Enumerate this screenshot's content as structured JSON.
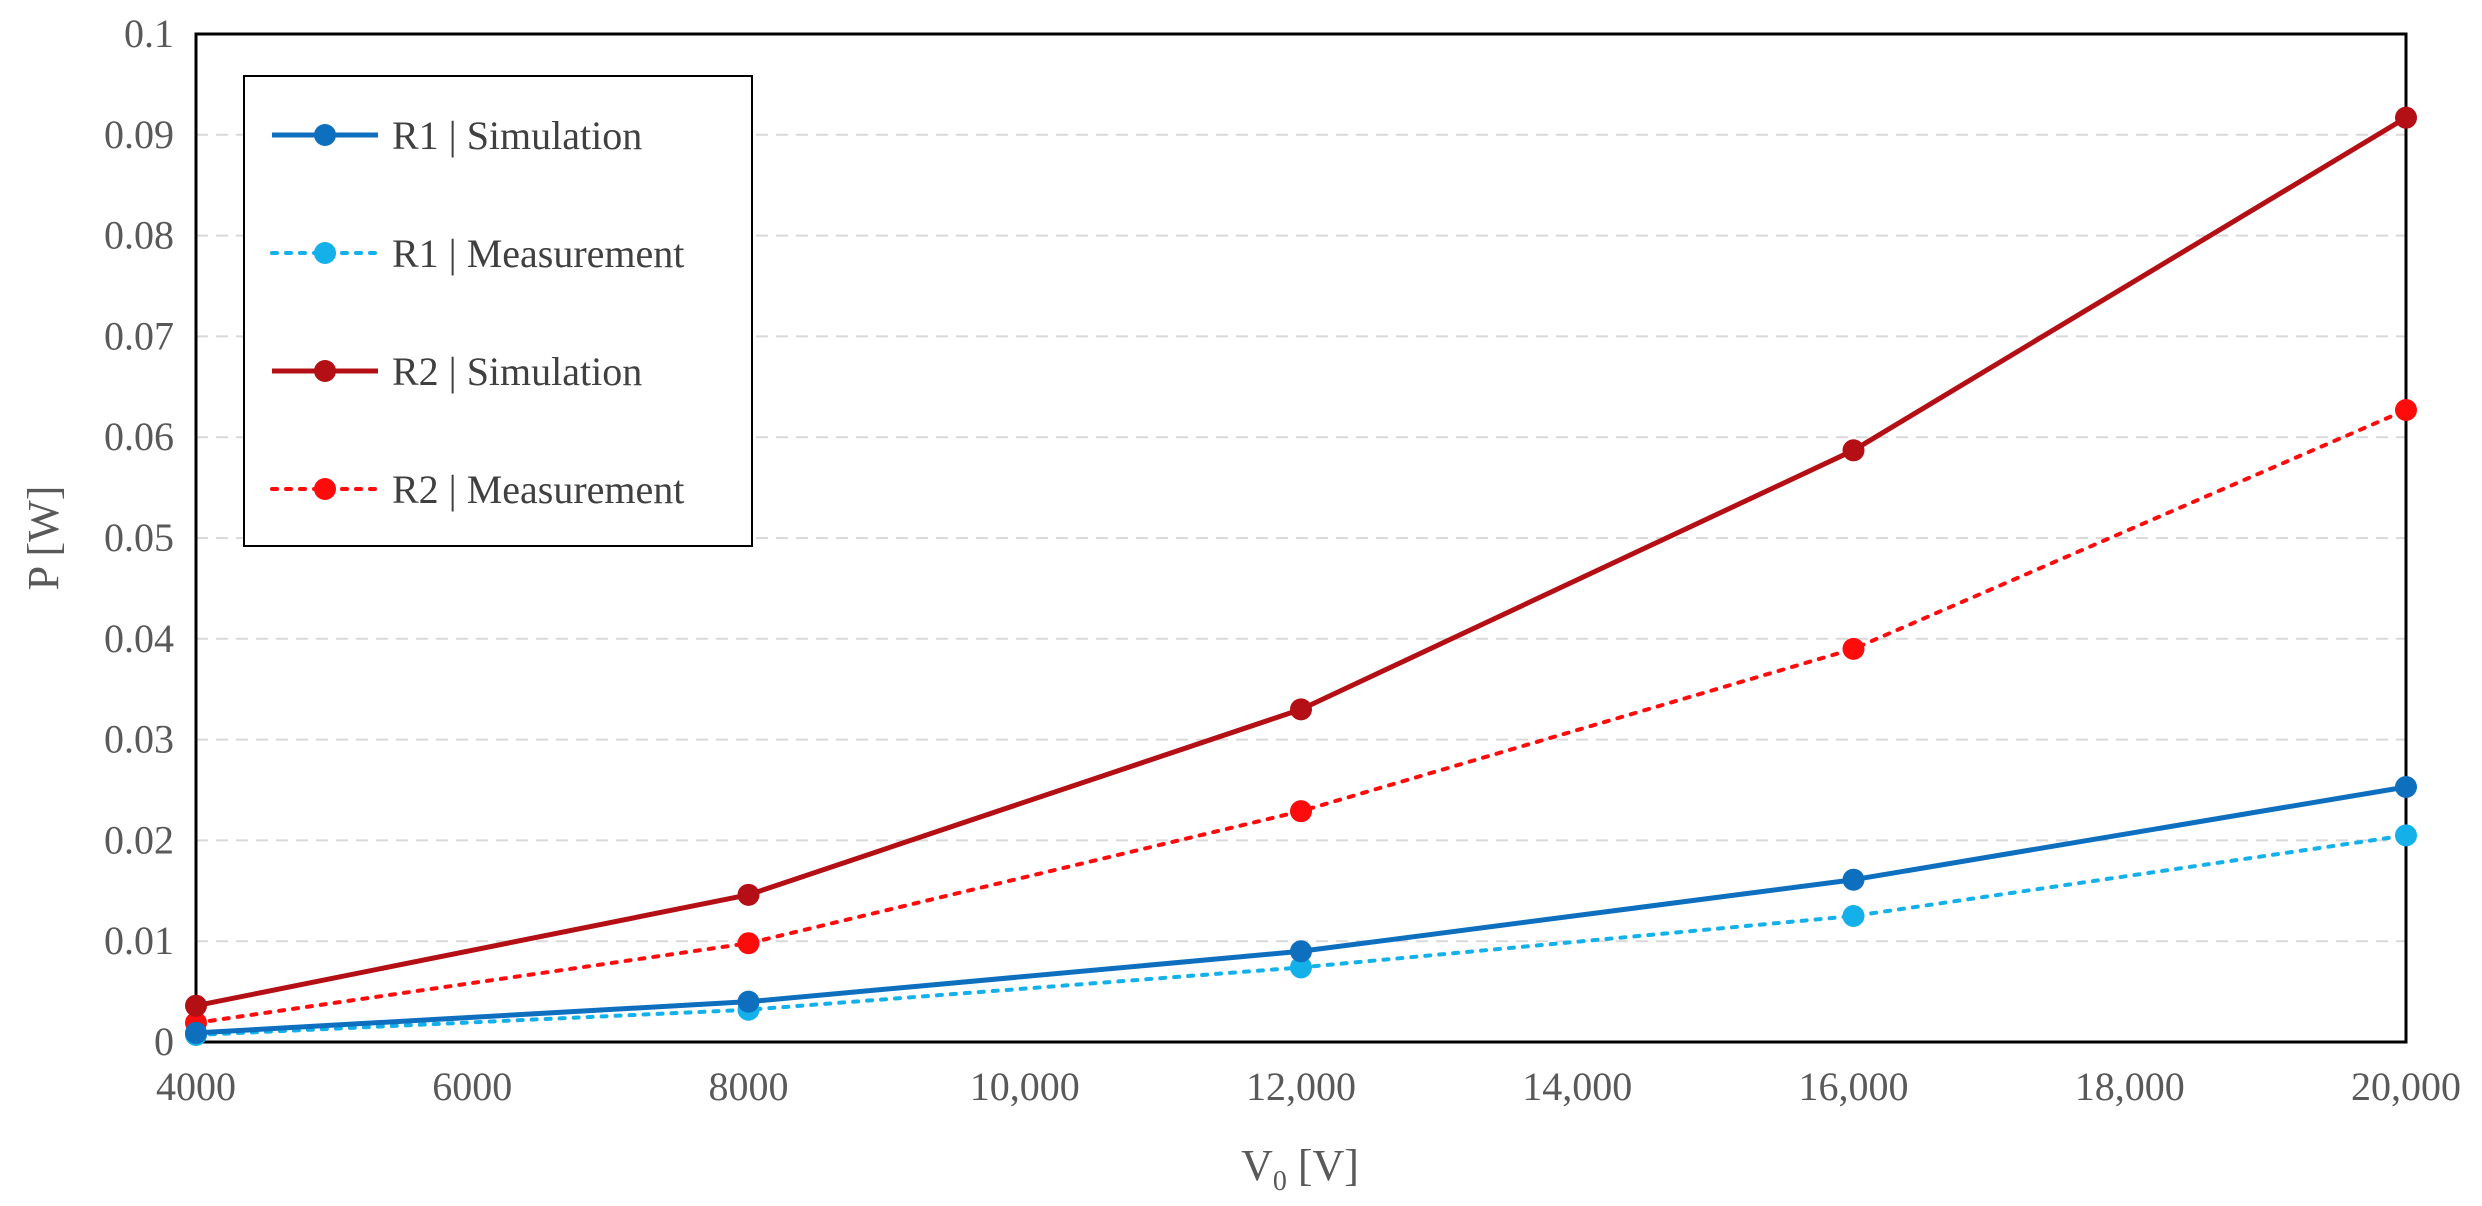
{
  "chart_data": {
    "type": "line",
    "title": "",
    "xlabel": "V",
    "xlabel_sub": "0",
    "xlabel_unit": " [V]",
    "ylabel": "P [W]",
    "xlim": [
      4000,
      20000
    ],
    "ylim": [
      0,
      0.1
    ],
    "x_ticks": [
      4000,
      6000,
      8000,
      10000,
      12000,
      14000,
      16000,
      18000,
      20000
    ],
    "x_tick_labels": [
      "4000",
      "6000",
      "8000",
      "10,000",
      "12,000",
      "14,000",
      "16,000",
      "18,000",
      "20,000"
    ],
    "y_ticks": [
      0,
      0.01,
      0.02,
      0.03,
      0.04,
      0.05,
      0.06,
      0.07,
      0.08,
      0.09,
      0.1
    ],
    "y_tick_labels": [
      "0",
      "0.01",
      "0.02",
      "0.03",
      "0.04",
      "0.05",
      "0.06",
      "0.07",
      "0.08",
      "0.09",
      "0.1"
    ],
    "grid": "horizontal dashed",
    "legend_position": "top-left",
    "x": [
      4000,
      8000,
      12000,
      16000,
      20000
    ],
    "series": [
      {
        "name": "R1 | Simulation",
        "values": [
          0.0009,
          0.004,
          0.009,
          0.0161,
          0.0253
        ],
        "color": "#0f6fbf",
        "style": "solid"
      },
      {
        "name": "R1 | Measurement",
        "values": [
          0.0007,
          0.0032,
          0.0074,
          0.0125,
          0.0205
        ],
        "color": "#13b0ea",
        "style": "dotted"
      },
      {
        "name": "R2 | Simulation",
        "values": [
          0.0036,
          0.0146,
          0.033,
          0.0587,
          0.0917
        ],
        "color": "#b30f14",
        "style": "solid"
      },
      {
        "name": "R2 | Measurement",
        "values": [
          0.0019,
          0.0098,
          0.0229,
          0.039,
          0.0627
        ],
        "color": "#fe0b0b",
        "style": "dotted"
      }
    ]
  }
}
